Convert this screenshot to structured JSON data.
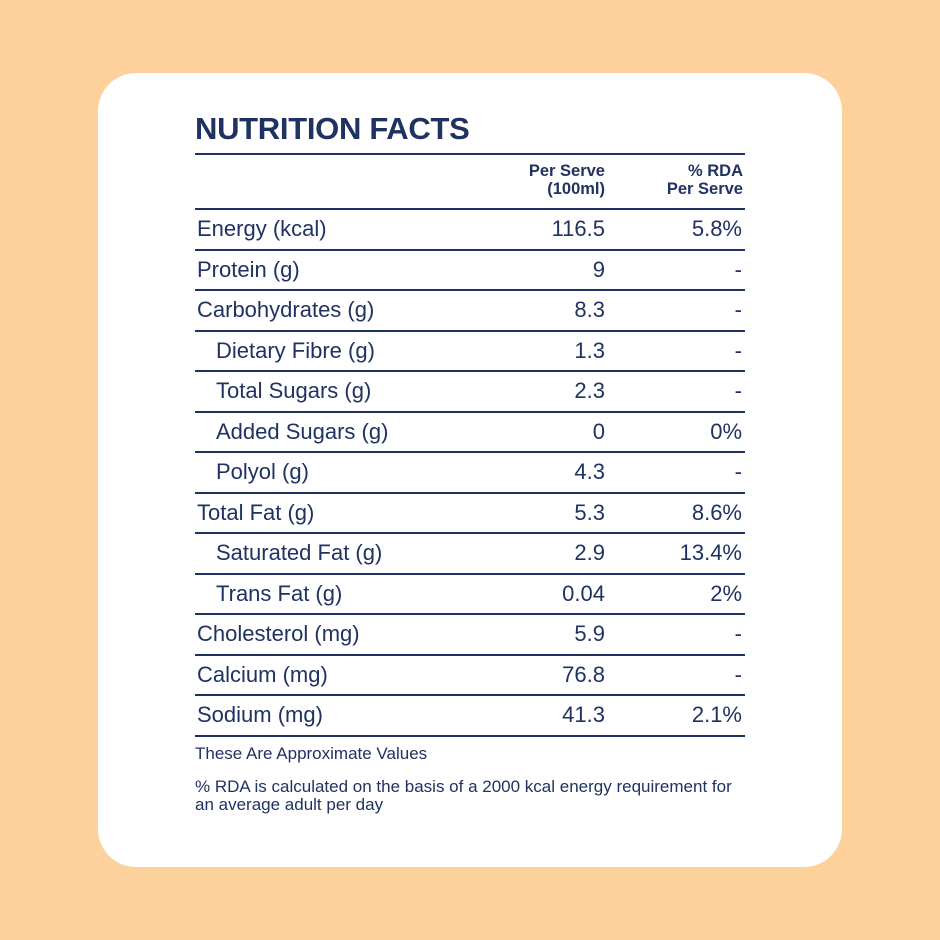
{
  "colors": {
    "background": "#FDD19B",
    "card": "#FFFFFF",
    "text": "#1F3262"
  },
  "panel": {
    "title": "NUTRITION FACTS",
    "columns": {
      "per_serve_line1": "Per Serve",
      "per_serve_line2": "(100ml)",
      "rda_line1": "% RDA",
      "rda_line2": "Per Serve"
    },
    "rows": [
      {
        "label": "Energy (kcal)",
        "value": "116.5",
        "rda": "5.8%"
      },
      {
        "label": "Protein (g)",
        "value": "9",
        "rda": "-"
      },
      {
        "label": "Carbohydrates (g)",
        "value": "8.3",
        "rda": "-"
      },
      {
        "label": "Dietary Fibre (g)",
        "value": "1.3",
        "rda": "-"
      },
      {
        "label": "Total Sugars (g)",
        "value": "2.3",
        "rda": "-"
      },
      {
        "label": "Added Sugars (g)",
        "value": "0",
        "rda": "0%"
      },
      {
        "label": "Polyol (g)",
        "value": "4.3",
        "rda": "-"
      },
      {
        "label": "Total Fat (g)",
        "value": "5.3",
        "rda": "8.6%"
      },
      {
        "label": "Saturated Fat (g)",
        "value": "2.9",
        "rda": "13.4%"
      },
      {
        "label": "Trans Fat (g)",
        "value": "0.04",
        "rda": "2%"
      },
      {
        "label": "Cholesterol (mg)",
        "value": "5.9",
        "rda": "-"
      },
      {
        "label": "Calcium (mg)",
        "value": "76.8",
        "rda": "-"
      },
      {
        "label": "Sodium (mg)",
        "value": "41.3",
        "rda": "2.1%"
      }
    ],
    "note_approx": "These Are Approximate Values",
    "note_rda": "% RDA is calculated on the basis of a 2000 kcal energy requirement for an average adult per day"
  }
}
